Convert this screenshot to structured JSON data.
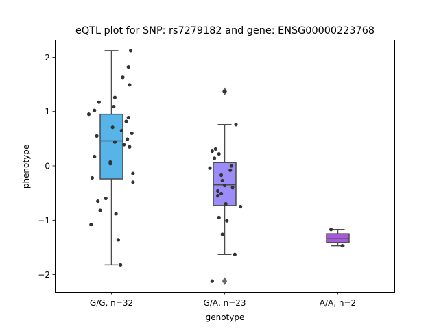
{
  "chart_data": {
    "type": "box",
    "title": "eQTL plot for SNP: rs7279182 and gene: ENSG00000223768",
    "xlabel": "genotype",
    "ylabel": "phenotype",
    "ylim": [
      -2.32,
      2.32
    ],
    "yticks": [
      -2,
      -1,
      0,
      1,
      2
    ],
    "ytick_labels": [
      "−2",
      "−1",
      "0",
      "1",
      "2"
    ],
    "grid": false,
    "legend": "none",
    "categories": [
      "G/G, n=32",
      "G/A, n=23",
      "A/A, n=2"
    ],
    "boxes": [
      {
        "category": "G/G, n=32",
        "color": "#56b4e9",
        "whisker_low": -1.82,
        "q1": -0.24,
        "median": 0.46,
        "q3": 0.95,
        "whisker_high": 2.12,
        "outliers": []
      },
      {
        "category": "G/A, n=23",
        "color": "#9b8cf7",
        "whisker_low": -1.63,
        "q1": -0.73,
        "median": -0.35,
        "q3": 0.06,
        "whisker_high": 0.76,
        "outliers": [
          1.37,
          -2.12
        ]
      },
      {
        "category": "A/A, n=2",
        "color": "#a55bd6",
        "whisker_low": -1.47,
        "q1": -1.41,
        "median": -1.34,
        "q3": -1.25,
        "whisker_high": -1.17,
        "outliers": []
      }
    ],
    "points": [
      {
        "x": 0.17,
        "y": 2.12
      },
      {
        "x": 0.15,
        "y": 1.82
      },
      {
        "x": 0.1,
        "y": 1.63
      },
      {
        "x": 0.16,
        "y": 1.49
      },
      {
        "x": 0.03,
        "y": 1.26
      },
      {
        "x": -0.11,
        "y": 1.17
      },
      {
        "x": -0.15,
        "y": 1.02
      },
      {
        "x": 0.02,
        "y": 1.09
      },
      {
        "x": -0.2,
        "y": 0.95
      },
      {
        "x": 0.15,
        "y": 0.89
      },
      {
        "x": 0.13,
        "y": 0.82
      },
      {
        "x": 0.01,
        "y": 0.71
      },
      {
        "x": 0.09,
        "y": 0.65
      },
      {
        "x": 0.18,
        "y": 0.6
      },
      {
        "x": -0.13,
        "y": 0.55
      },
      {
        "x": 0.14,
        "y": 0.49
      },
      {
        "x": 0.03,
        "y": 0.44
      },
      {
        "x": 0.11,
        "y": 0.39
      },
      {
        "x": 0.16,
        "y": 0.35
      },
      {
        "x": -0.15,
        "y": 0.17
      },
      {
        "x": -0.01,
        "y": 0.07
      },
      {
        "x": -0.01,
        "y": 0.04
      },
      {
        "x": -0.17,
        "y": -0.22
      },
      {
        "x": 0.19,
        "y": -0.14
      },
      {
        "x": 0.19,
        "y": -0.3
      },
      {
        "x": -0.05,
        "y": -0.6
      },
      {
        "x": -0.12,
        "y": -0.65
      },
      {
        "x": -0.1,
        "y": -0.82
      },
      {
        "x": 0.04,
        "y": -0.88
      },
      {
        "x": -0.18,
        "y": -1.08
      },
      {
        "x": 0.06,
        "y": -1.36
      },
      {
        "x": 0.08,
        "y": -1.82
      },
      {
        "x": 1.0,
        "y": 1.37
      },
      {
        "x": 1.1,
        "y": 0.76
      },
      {
        "x": 0.92,
        "y": 0.31
      },
      {
        "x": 0.89,
        "y": 0.27
      },
      {
        "x": 0.95,
        "y": 0.22
      },
      {
        "x": 0.91,
        "y": 0.14
      },
      {
        "x": 1.06,
        "y": 0.0
      },
      {
        "x": 0.87,
        "y": -0.04
      },
      {
        "x": 1.05,
        "y": -0.08
      },
      {
        "x": 0.97,
        "y": -0.17
      },
      {
        "x": 0.98,
        "y": -0.27
      },
      {
        "x": 1.0,
        "y": -0.36
      },
      {
        "x": 1.07,
        "y": -0.4
      },
      {
        "x": 0.94,
        "y": -0.46
      },
      {
        "x": 0.97,
        "y": -0.51
      },
      {
        "x": 0.94,
        "y": -0.55
      },
      {
        "x": 1.01,
        "y": -0.7
      },
      {
        "x": 1.14,
        "y": -0.75
      },
      {
        "x": 0.95,
        "y": -0.95
      },
      {
        "x": 1.02,
        "y": -1.01
      },
      {
        "x": 0.98,
        "y": -1.26
      },
      {
        "x": 1.09,
        "y": -1.63
      },
      {
        "x": 0.89,
        "y": -2.12
      },
      {
        "x": 1.94,
        "y": -1.17
      },
      {
        "x": 2.04,
        "y": -1.47
      }
    ]
  }
}
